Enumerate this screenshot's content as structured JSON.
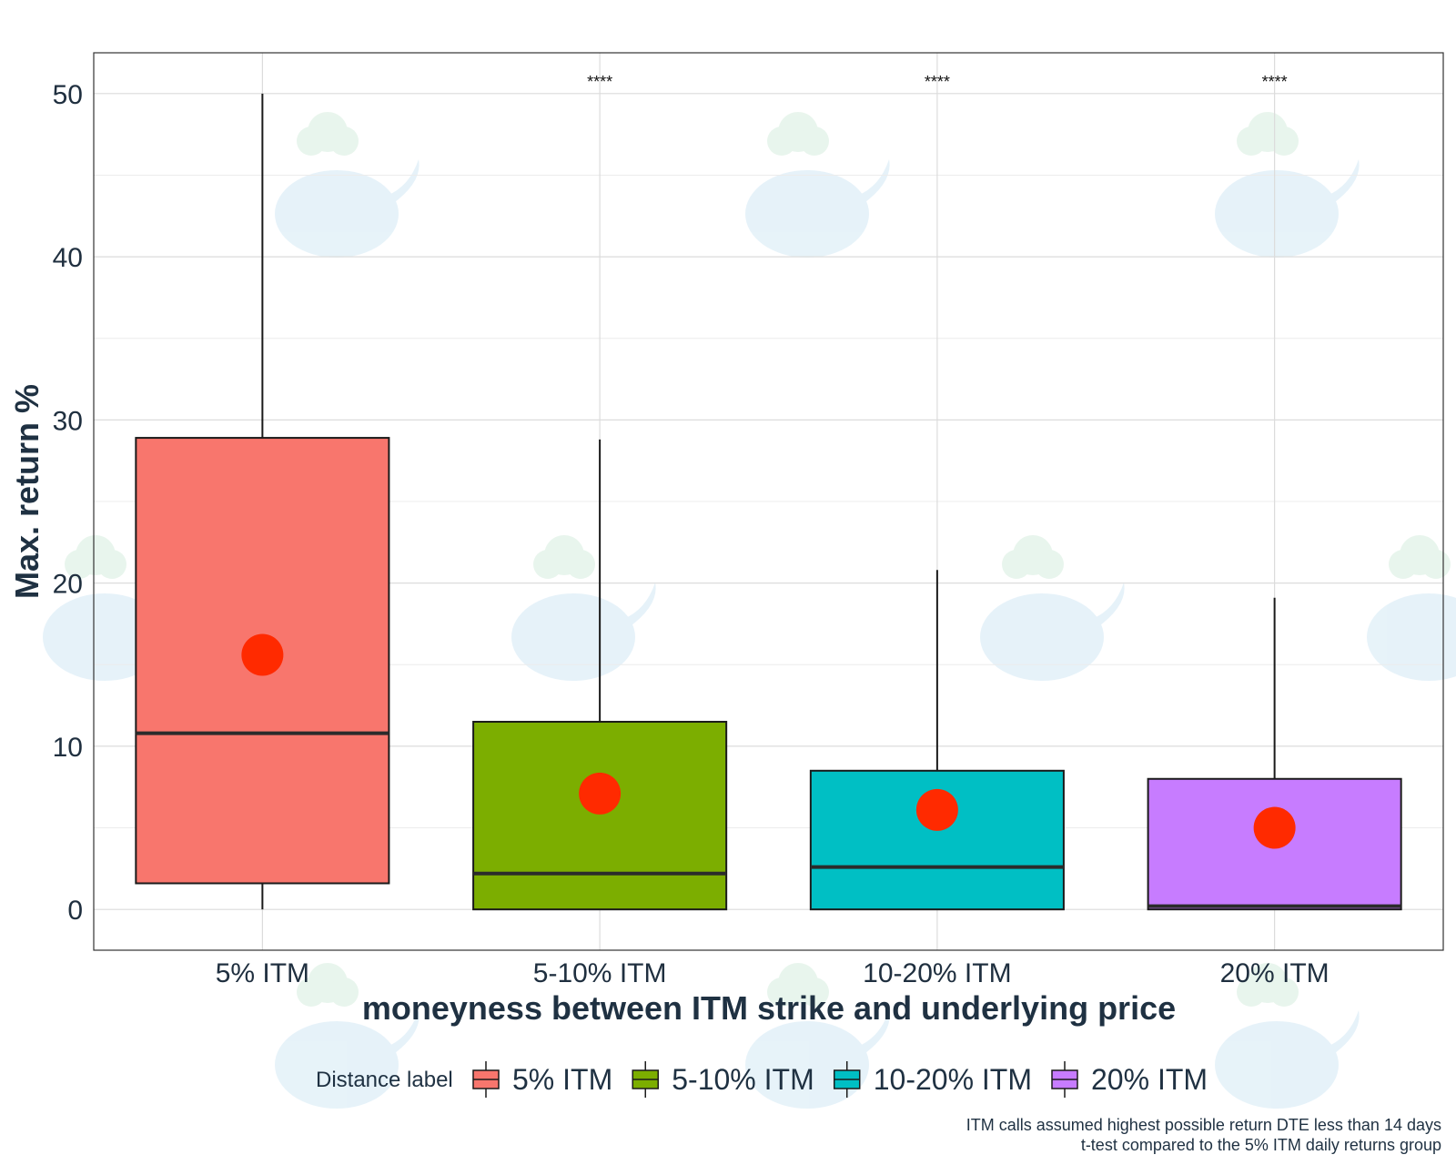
{
  "chart_data": {
    "type": "box",
    "title": "",
    "xlabel": "moneyness between ITM strike and underlying price",
    "ylabel": "Max. return %",
    "ylim": [
      -2.5,
      52.5
    ],
    "yticks": [
      0,
      10,
      20,
      30,
      40,
      50
    ],
    "grid": true,
    "legend": {
      "title": "Distance label",
      "placement": "bottom"
    },
    "categories": [
      "5% ITM",
      "5-10% ITM",
      "10-20% ITM",
      "20% ITM"
    ],
    "series": [
      {
        "name": "5% ITM",
        "color": "#F8766D",
        "whisker_low": 0,
        "q1": 1.6,
        "median": 10.8,
        "q3": 28.9,
        "whisker_high": 50,
        "mean": 15.6,
        "significance": ""
      },
      {
        "name": "5-10% ITM",
        "color": "#7CAE00",
        "whisker_low": 0,
        "q1": 0,
        "median": 2.2,
        "q3": 11.5,
        "whisker_high": 28.8,
        "mean": 7.1,
        "significance": "****"
      },
      {
        "name": "10-20% ITM",
        "color": "#00BFC4",
        "whisker_low": 0,
        "q1": 0,
        "median": 2.6,
        "q3": 8.5,
        "whisker_high": 20.8,
        "mean": 6.1,
        "significance": "****"
      },
      {
        "name": "20% ITM",
        "color": "#C77CFF",
        "whisker_low": 0,
        "q1": 0,
        "median": 0.2,
        "q3": 8.0,
        "whisker_high": 19.1,
        "mean": 5.0,
        "significance": "****"
      }
    ],
    "mean_marker_color": "#FF2A00",
    "caption": [
      "ITM calls assumed highest possible return DTE less than 14 days",
      "t-test compared to the 5% ITM daily returns group"
    ]
  }
}
